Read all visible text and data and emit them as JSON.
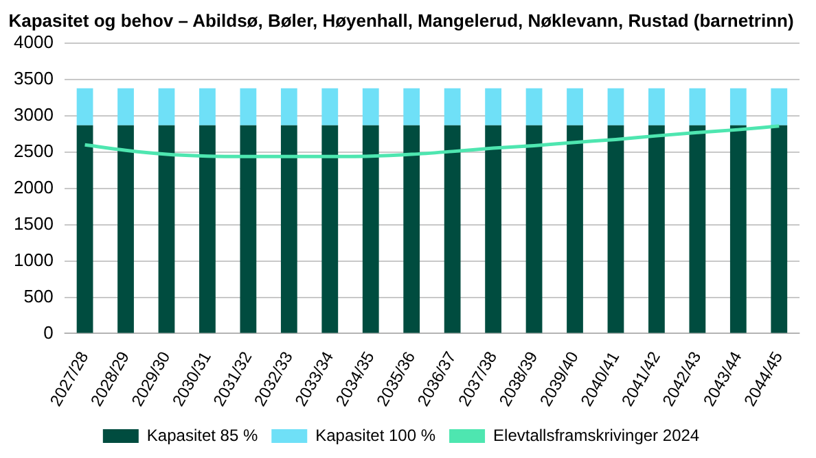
{
  "chart_data": {
    "type": "bar",
    "title": "Kapasitet og behov – Abildsø, Bøler, Høyenhall, Mangelerud, Nøklevann, Rustad (barnetrinn)",
    "categories": [
      "2027/28",
      "2028/29",
      "2029/30",
      "2030/31",
      "2031/32",
      "2032/33",
      "2033/34",
      "2034/35",
      "2035/36",
      "2036/37",
      "2037/38",
      "2038/39",
      "2039/40",
      "2040/41",
      "2041/42",
      "2042/43",
      "2043/44",
      "2044/45"
    ],
    "stacked": true,
    "series": [
      {
        "name": "Kapasitet 85 %",
        "color": "#004c3f",
        "values": [
          2870,
          2870,
          2870,
          2870,
          2870,
          2870,
          2870,
          2870,
          2870,
          2870,
          2870,
          2870,
          2870,
          2870,
          2870,
          2870,
          2870,
          2870
        ]
      },
      {
        "name": "Kapasitet 100 %",
        "color": "#6fe0f7",
        "values": [
          510,
          510,
          510,
          510,
          510,
          510,
          510,
          510,
          510,
          510,
          510,
          510,
          510,
          510,
          510,
          510,
          510,
          510
        ]
      },
      {
        "name": "Elevtallsframskrivinger 2024",
        "type": "line",
        "color": "#4ee6b0",
        "values": [
          2600,
          2525,
          2470,
          2445,
          2440,
          2440,
          2440,
          2445,
          2470,
          2510,
          2555,
          2590,
          2635,
          2675,
          2725,
          2770,
          2810,
          2860
        ]
      }
    ],
    "ylim": [
      0,
      4000
    ],
    "yticks": [
      0,
      500,
      1000,
      1500,
      2000,
      2500,
      3000,
      3500,
      4000
    ],
    "grid": "y",
    "legend": "bottom",
    "marker": "none"
  }
}
